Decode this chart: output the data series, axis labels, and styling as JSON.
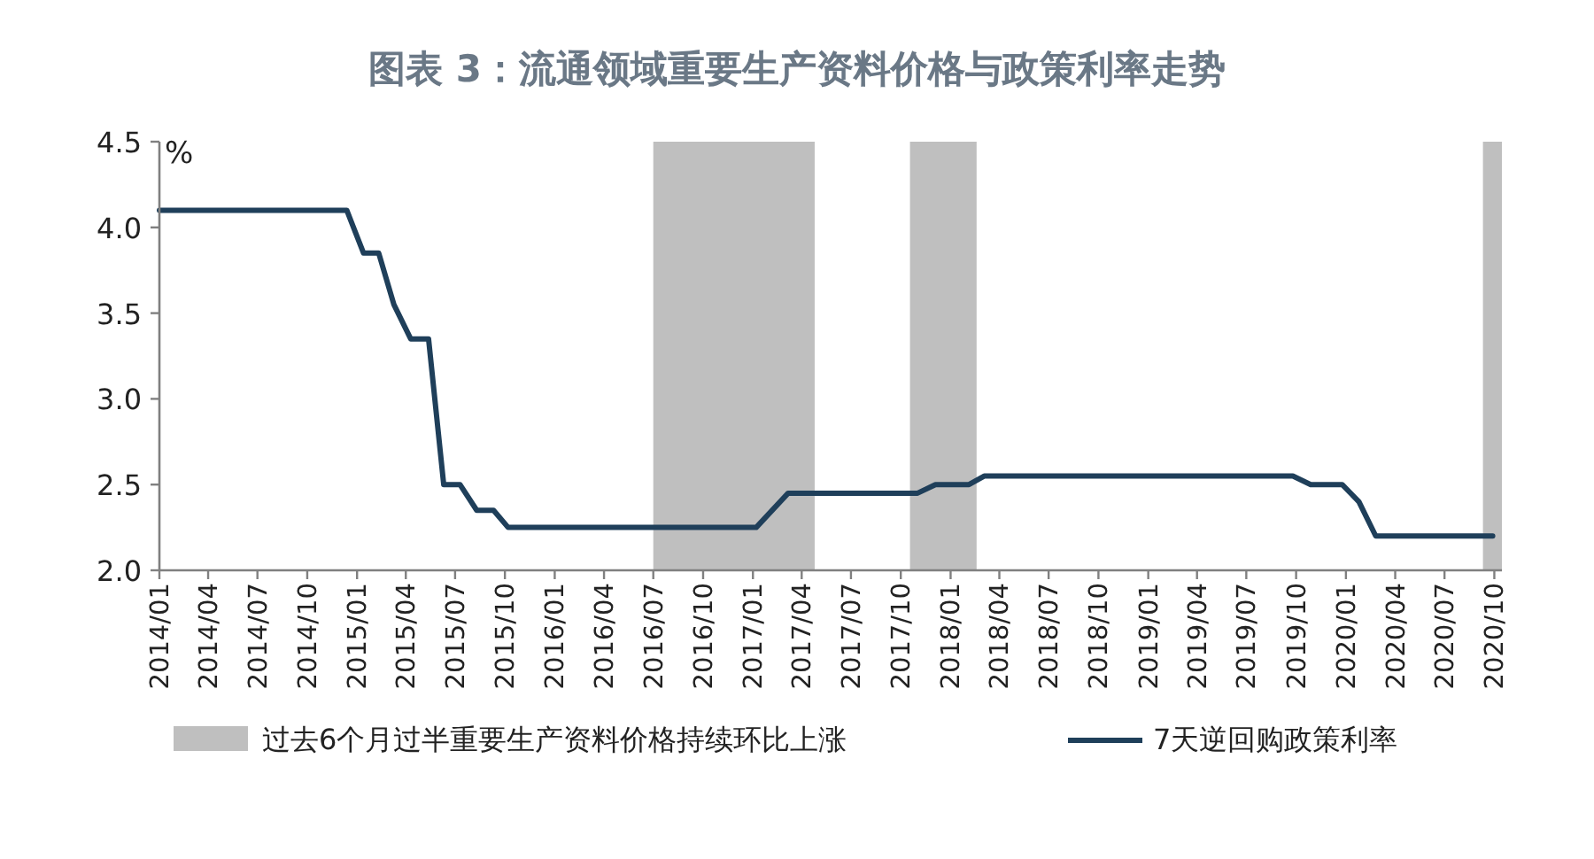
{
  "chart_data": {
    "type": "line",
    "title": "图表 3：流通领域重要生产资料价格与政策利率走势",
    "ylabel": "%",
    "x": [
      "2014-01-01",
      "2014-12-13",
      "2015-01-13",
      "2015-02-10",
      "2015-03-10",
      "2015-04-10",
      "2015-05-13",
      "2015-06-10",
      "2015-07-10",
      "2015-08-10",
      "2015-09-10",
      "2015-10-07",
      "2017-01-07",
      "2017-03-07",
      "2017-11-01",
      "2017-12-04",
      "2018-02-04",
      "2018-03-04",
      "2019-09-25",
      "2019-10-28",
      "2019-12-25",
      "2020-01-25",
      "2020-02-25",
      "2020-09-28"
    ],
    "series": [
      {
        "name": "7天逆回购政策利率",
        "color": "#1f3f5a",
        "values": [
          4.1,
          4.1,
          3.85,
          3.85,
          3.55,
          3.35,
          3.35,
          2.5,
          2.5,
          2.35,
          2.35,
          2.25,
          2.25,
          2.45,
          2.45,
          2.5,
          2.5,
          2.55,
          2.55,
          2.5,
          2.5,
          2.4,
          2.2,
          2.2
        ]
      }
    ],
    "bands": [
      {
        "axis": "x",
        "from": "2016-07-01",
        "to": "2017-04-25",
        "label": "过去6个月过半重要生产资料价格持续环比上涨",
        "color": "#bfbfbf"
      },
      {
        "axis": "x",
        "from": "2017-10-18",
        "to": "2018-02-18",
        "color": "#bfbfbf"
      },
      {
        "axis": "x",
        "from": "2020-09-10",
        "to": "2020-10-15",
        "color": "#bfbfbf"
      }
    ],
    "xlim": [
      "2014-01-01",
      "2020-10-15"
    ],
    "xticks": [
      {
        "value": "2014-01",
        "label": "2014/01"
      },
      {
        "value": "2014-04",
        "label": "2014/04"
      },
      {
        "value": "2014-07",
        "label": "2014/07"
      },
      {
        "value": "2014-10",
        "label": "2014/10"
      },
      {
        "value": "2015-01",
        "label": "2015/01"
      },
      {
        "value": "2015-04",
        "label": "2015/04"
      },
      {
        "value": "2015-07",
        "label": "2015/07"
      },
      {
        "value": "2015-10",
        "label": "2015/10"
      },
      {
        "value": "2016-01",
        "label": "2016/01"
      },
      {
        "value": "2016-04",
        "label": "2016/04"
      },
      {
        "value": "2016-07",
        "label": "2016/07"
      },
      {
        "value": "2016-10",
        "label": "2016/10"
      },
      {
        "value": "2017-01",
        "label": "2017/01"
      },
      {
        "value": "2017-04",
        "label": "2017/04"
      },
      {
        "value": "2017-07",
        "label": "2017/07"
      },
      {
        "value": "2017-10",
        "label": "2017/10"
      },
      {
        "value": "2018-01",
        "label": "2018/01"
      },
      {
        "value": "2018-04",
        "label": "2018/04"
      },
      {
        "value": "2018-07",
        "label": "2018/07"
      },
      {
        "value": "2018-10",
        "label": "2018/10"
      },
      {
        "value": "2019-01",
        "label": "2019/01"
      },
      {
        "value": "2019-04",
        "label": "2019/04"
      },
      {
        "value": "2019-07",
        "label": "2019/07"
      },
      {
        "value": "2019-10",
        "label": "2019/10"
      },
      {
        "value": "2020-01",
        "label": "2020/01"
      },
      {
        "value": "2020-04",
        "label": "2020/04"
      },
      {
        "value": "2020-07",
        "label": "2020/07"
      },
      {
        "value": "2020-10",
        "label": "2020/10"
      }
    ],
    "ylim": [
      2.0,
      4.5
    ],
    "yticks": [
      {
        "value": 2.0,
        "label": "2.0"
      },
      {
        "value": 2.5,
        "label": "2.5"
      },
      {
        "value": 3.0,
        "label": "3.0"
      },
      {
        "value": 3.5,
        "label": "3.5"
      },
      {
        "value": 4.0,
        "label": "4.0"
      },
      {
        "value": 4.5,
        "label": "4.5"
      }
    ],
    "grid": false,
    "legend": "bottom",
    "marker": "none",
    "line_style": "solid"
  }
}
